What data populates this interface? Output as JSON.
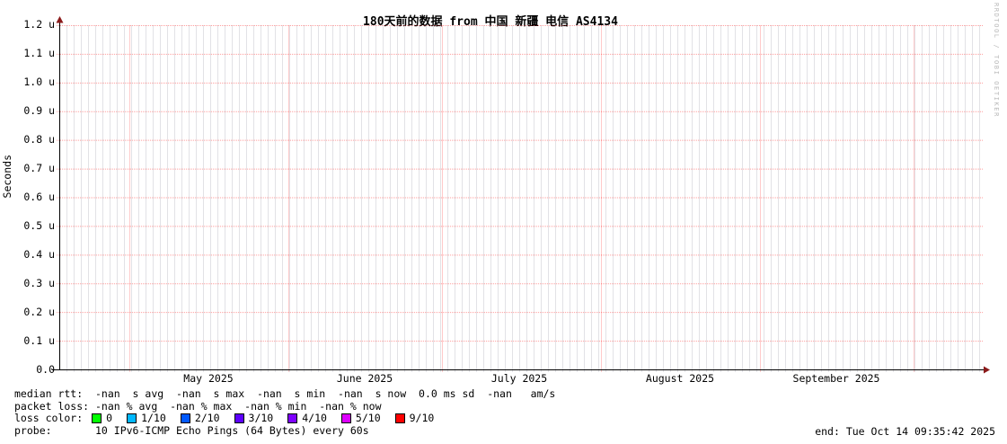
{
  "title": "180天前的数据 from 中国 新疆 电信 AS4134",
  "watermark": "RRDTOOL / TOBI OETIKER",
  "y_axis": {
    "label": "Seconds",
    "ticks": [
      "0.0",
      "0.1 u",
      "0.2 u",
      "0.3 u",
      "0.4 u",
      "0.5 u",
      "0.6 u",
      "0.7 u",
      "0.8 u",
      "0.9 u",
      "1.0 u",
      "1.1 u",
      "1.2 u"
    ]
  },
  "x_axis": {
    "ticks": [
      "May 2025",
      "June 2025",
      "July 2025",
      "August 2025",
      "September 2025"
    ]
  },
  "legend": {
    "median_rtt": "median rtt:  -nan  s avg  -nan  s max  -nan  s min  -nan  s now  0.0 ms sd  -nan   am/s",
    "packet_loss": "packet loss: -nan % avg  -nan % max  -nan % min  -nan % now",
    "loss_color_label": "loss color:",
    "loss_colors": [
      {
        "label": "0",
        "color": "#00ff00"
      },
      {
        "label": "1/10",
        "color": "#00b8ff"
      },
      {
        "label": "2/10",
        "color": "#0059ff"
      },
      {
        "label": "3/10",
        "color": "#5e00ff"
      },
      {
        "label": "4/10",
        "color": "#7e00ff"
      },
      {
        "label": "5/10",
        "color": "#dd00ff"
      },
      {
        "label": "9/10",
        "color": "#ff0000"
      }
    ],
    "probe": "probe:       10 IPv6-ICMP Echo Pings (64 Bytes) every 60s",
    "end": "end: Tue Oct 14 09:35:42 2025"
  },
  "colors": {
    "major_grid": "#ff0000",
    "minor_grid": "#c6c6ce",
    "axis": "#000000",
    "arrow": "#8b1a1a",
    "watermark": "#b9b9b9"
  },
  "chart_data": {
    "type": "line",
    "title": "180天前的数据 from 中国 新疆 电信 AS4134",
    "xlabel": "",
    "ylabel": "Seconds",
    "x_tick_labels": [
      "May 2025",
      "June 2025",
      "July 2025",
      "August 2025",
      "September 2025"
    ],
    "y_tick_labels": [
      "0.0",
      "0.1 u",
      "0.2 u",
      "0.3 u",
      "0.4 u",
      "0.5 u",
      "0.6 u",
      "0.7 u",
      "0.8 u",
      "0.9 u",
      "1.0 u",
      "1.1 u",
      "1.2 u"
    ],
    "ylim_seconds": [
      0,
      1.2e-06
    ],
    "end_time": "Tue Oct 14 09:35:42 2025",
    "grid": true,
    "legend_position": "bottom",
    "series": [
      {
        "name": "median rtt",
        "values": [],
        "note": "graph is empty; all stats shown as -nan"
      }
    ],
    "stats": {
      "median_rtt": {
        "avg": "-nan",
        "max": "-nan",
        "min": "-nan",
        "now": "-nan",
        "sd": "0.0 ms"
      },
      "packet_loss": {
        "avg": "-nan",
        "max": "-nan",
        "min": "-nan",
        "now": "-nan"
      }
    }
  }
}
